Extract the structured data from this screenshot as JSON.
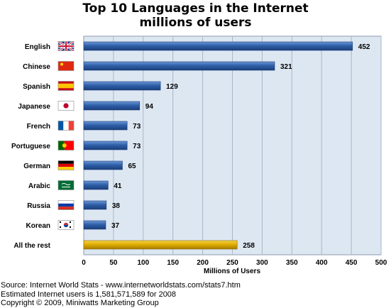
{
  "chart_data": {
    "type": "bar",
    "orientation": "horizontal",
    "title_lines": [
      "Top 10 Languages in the Internet",
      "millions of users"
    ],
    "categories": [
      "English",
      "Chinese",
      "Spanish",
      "Japanese",
      "French",
      "Portuguese",
      "German",
      "Arabic",
      "Russia",
      "Korean",
      "All the rest"
    ],
    "values": [
      452,
      321,
      129,
      94,
      73,
      73,
      65,
      41,
      38,
      37,
      258
    ],
    "value_labels": [
      "452",
      "321",
      "129",
      "94",
      "73",
      "73",
      "65",
      "41",
      "38",
      "37",
      "258"
    ],
    "flag_icons": [
      "uk-flag-icon",
      "china-flag-icon",
      "spain-flag-icon",
      "japan-flag-icon",
      "france-flag-icon",
      "portugal-flag-icon",
      "germany-flag-icon",
      "saudi-arabia-flag-icon",
      "russia-flag-icon",
      "south-korea-flag-icon",
      ""
    ],
    "xlabel": "Millions of Users",
    "xlim": [
      0,
      500
    ],
    "xticks": [
      0,
      50,
      100,
      150,
      200,
      250,
      300,
      350,
      400,
      450,
      500
    ],
    "xtick_labels": [
      "0",
      "50",
      "100",
      "150",
      "200",
      "250",
      "300",
      "350",
      "400",
      "450",
      "500"
    ],
    "grid": "vertical",
    "colors": {
      "bar": "#2e5fa8",
      "bar_highlight": "#e0ad00",
      "plot_background": "#dde7f2",
      "grid": "#aab6c8"
    }
  },
  "notes": [
    "Source: Internet World Stats - www.internetworldstats.com/stats7.htm",
    "Estimated Internet users is 1,581,571,589 for 2008",
    "Copyright © 2009, Miniwatts Marketing Group"
  ]
}
